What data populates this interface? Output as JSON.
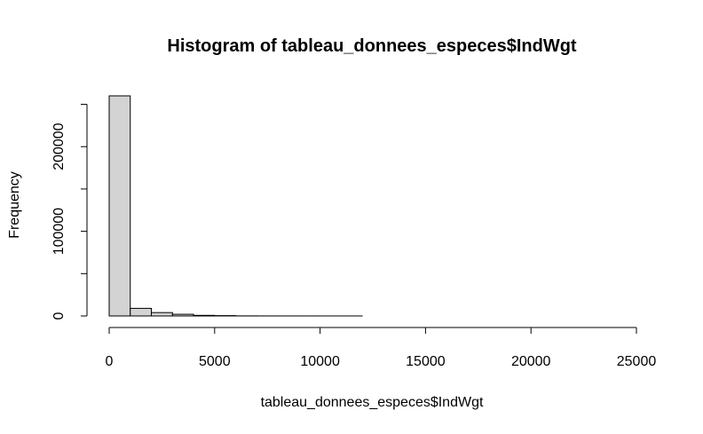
{
  "chart_data": {
    "type": "bar",
    "subtype": "histogram",
    "title": "Histogram of tableau_donnees_especes$IndWgt",
    "xlabel": "tableau_donnees_especes$IndWgt",
    "ylabel": "Frequency",
    "bin_width": 1000,
    "x": [
      0,
      1000,
      2000,
      3000,
      4000,
      5000,
      6000,
      7000,
      8000,
      9000,
      10000,
      11000,
      12000,
      13000,
      14000,
      15000,
      16000,
      17000,
      18000,
      19000,
      20000,
      21000,
      22000,
      23000,
      24000
    ],
    "values": [
      260000,
      9000,
      4000,
      2000,
      700,
      400,
      100,
      50,
      30,
      20,
      10,
      10,
      5,
      5,
      3,
      3,
      2,
      2,
      1,
      1,
      1,
      1,
      1,
      1,
      1
    ],
    "xlim": [
      0,
      25000
    ],
    "ylim": [
      0,
      260000
    ],
    "x_ticks": [
      0,
      5000,
      10000,
      15000,
      20000,
      25000
    ],
    "x_tick_labels": [
      "0",
      "5000",
      "10000",
      "15000",
      "20000",
      "25000"
    ],
    "y_ticks": [
      0,
      50000,
      100000,
      150000,
      200000,
      250000
    ],
    "y_tick_labels": [
      "0",
      "100000",
      "200000"
    ],
    "y_labeled_ticks": [
      0,
      100000,
      200000
    ],
    "bar_fill": "#d3d3d3",
    "bar_stroke": "#000000",
    "grid": false
  }
}
